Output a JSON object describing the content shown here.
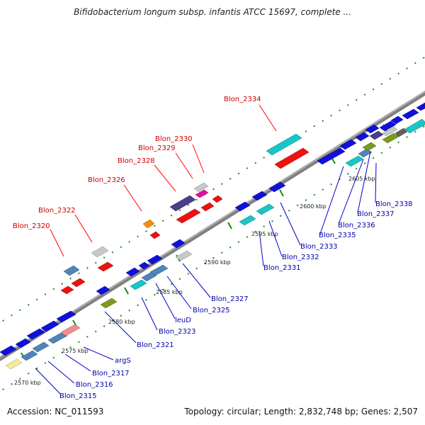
{
  "title": "Bifidobacterium longum subsp. infantis ATCC 15697, complete ...",
  "footer": {
    "accession": "Accession: NC_011593",
    "summary": "Topology: circular; Length: 2,832,748 bp; Genes: 2,507"
  },
  "colors": {
    "backbone": "#8f8f8f",
    "dots": "#1a8a1a",
    "label_red": "#cc0000",
    "label_blue": "#0000aa",
    "leader_red": "#ff0000",
    "leader_blue": "#0000cc"
  },
  "map": {
    "ticks": [
      "2570 kbp",
      "2575 kbp",
      "2580 kbp",
      "2585 kbp",
      "2590 kbp",
      "2595 kbp",
      "2600 kbp",
      "2605 kbp"
    ],
    "labels_top": [
      "Blon_2320",
      "Blon_2322",
      "Blon_2326",
      "Blon_2328",
      "Blon_2329",
      "Blon_2330",
      "Blon_2334"
    ],
    "labels_bottom": [
      "Blon_2315",
      "Blon_2316",
      "Blon_2317",
      "argS",
      "Blon_2321",
      "Blon_2323",
      "leuD",
      "Blon_2325",
      "Blon_2327",
      "Blon_2331",
      "Blon_2332",
      "Blon_2333",
      "Blon_2335",
      "Blon_2336",
      "Blon_2337",
      "Blon_2338"
    ]
  }
}
